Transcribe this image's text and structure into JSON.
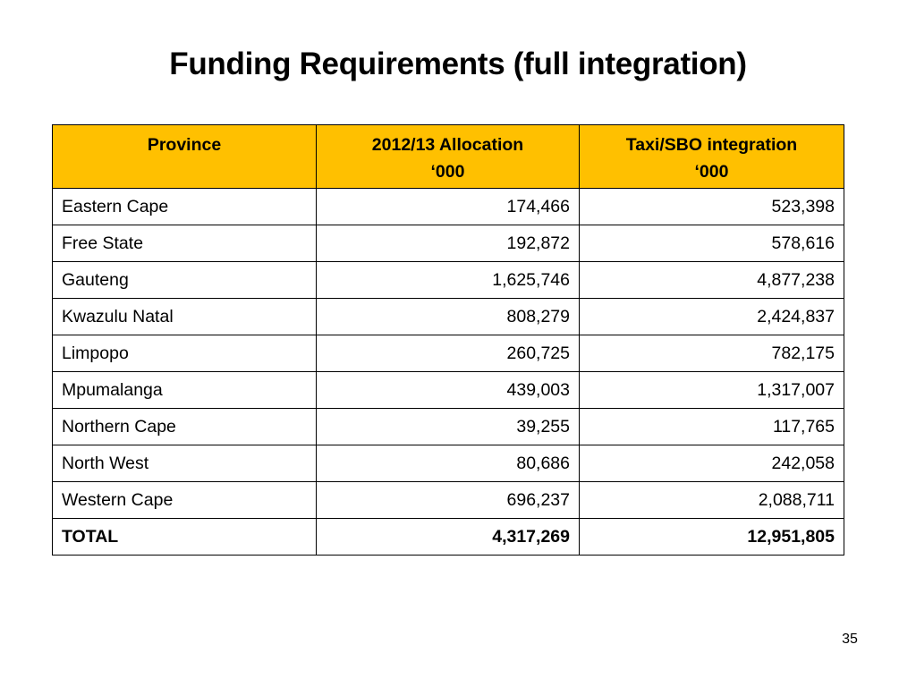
{
  "title": "Funding Requirements (full integration)",
  "table": {
    "headers": [
      {
        "line1": "Province",
        "line2": ""
      },
      {
        "line1": "2012/13 Allocation",
        "line2": "‘000"
      },
      {
        "line1": "Taxi/SBO integration",
        "line2": "‘000"
      }
    ],
    "rows": [
      {
        "province": "Eastern Cape",
        "allocation": "174,466",
        "integration": "523,398"
      },
      {
        "province": "Free State",
        "allocation": "192,872",
        "integration": "578,616"
      },
      {
        "province": "Gauteng",
        "allocation": "1,625,746",
        "integration": "4,877,238"
      },
      {
        "province": "Kwazulu Natal",
        "allocation": "808,279",
        "integration": "2,424,837"
      },
      {
        "province": "Limpopo",
        "allocation": "260,725",
        "integration": "782,175"
      },
      {
        "province": "Mpumalanga",
        "allocation": "439,003",
        "integration": "1,317,007"
      },
      {
        "province": "Northern Cape",
        "allocation": "39,255",
        "integration": "117,765"
      },
      {
        "province": "North West",
        "allocation": "80,686",
        "integration": "242,058"
      },
      {
        "province": "Western Cape",
        "allocation": "696,237",
        "integration": "2,088,711"
      }
    ],
    "total": {
      "province": "TOTAL",
      "allocation": "4,317,269",
      "integration": "12,951,805"
    }
  },
  "page_number": "35",
  "colors": {
    "header_background": "#ffc000",
    "border": "#000000",
    "text": "#000000"
  }
}
